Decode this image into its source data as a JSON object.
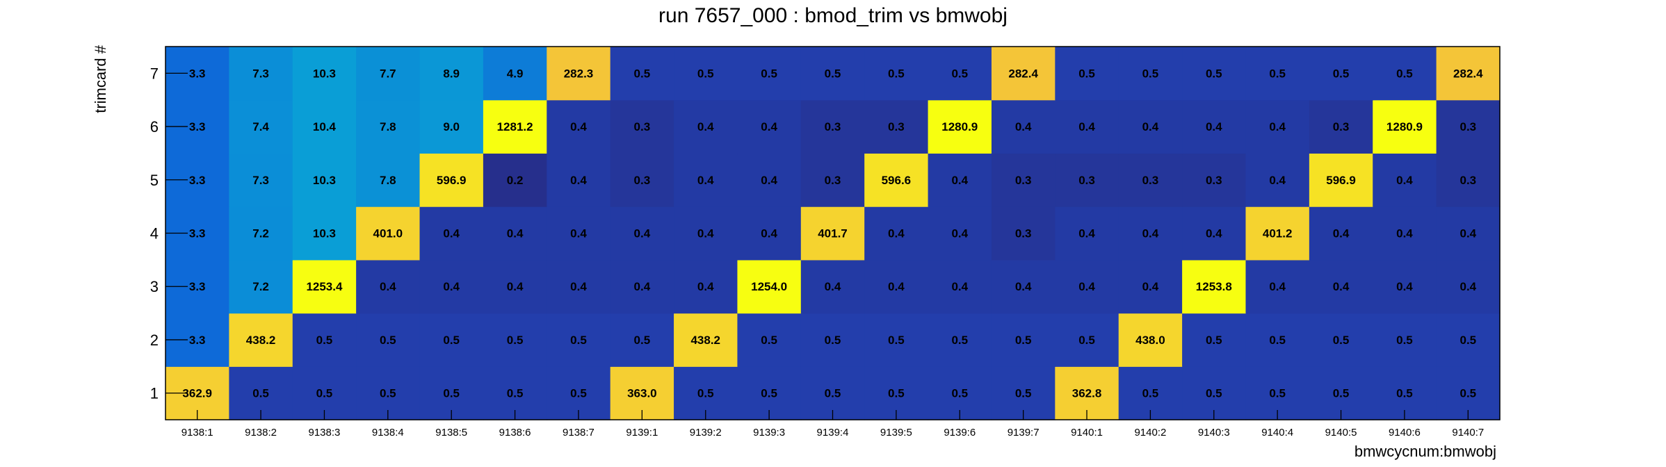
{
  "chart_data": {
    "type": "heatmap",
    "title": "run 7657_000 : bmod_trim vs bmwobj",
    "xlabel": "bmwcycnum:bmwobj",
    "ylabel": "trimcard #",
    "categories": [
      "9138:1",
      "9138:2",
      "9138:3",
      "9138:4",
      "9138:5",
      "9138:6",
      "9138:7",
      "9139:1",
      "9139:2",
      "9139:3",
      "9139:4",
      "9139:5",
      "9139:6",
      "9139:7",
      "9140:1",
      "9140:2",
      "9140:3",
      "9140:4",
      "9140:5",
      "9140:6",
      "9140:7"
    ],
    "y": [
      1,
      2,
      3,
      4,
      5,
      6,
      7
    ],
    "values": [
      [
        362.9,
        0.5,
        0.5,
        0.5,
        0.5,
        0.5,
        0.5,
        363.0,
        0.5,
        0.5,
        0.5,
        0.5,
        0.5,
        0.5,
        362.8,
        0.5,
        0.5,
        0.5,
        0.5,
        0.5,
        0.5
      ],
      [
        3.3,
        438.2,
        0.5,
        0.5,
        0.5,
        0.5,
        0.5,
        0.5,
        438.2,
        0.5,
        0.5,
        0.5,
        0.5,
        0.5,
        0.5,
        438.0,
        0.5,
        0.5,
        0.5,
        0.5,
        0.5
      ],
      [
        3.3,
        7.2,
        1253.4,
        0.4,
        0.4,
        0.4,
        0.4,
        0.4,
        0.4,
        1254.0,
        0.4,
        0.4,
        0.4,
        0.4,
        0.4,
        0.4,
        1253.8,
        0.4,
        0.4,
        0.4,
        0.4
      ],
      [
        3.3,
        7.2,
        10.3,
        401.0,
        0.4,
        0.4,
        0.4,
        0.4,
        0.4,
        0.4,
        401.7,
        0.4,
        0.4,
        0.3,
        0.4,
        0.4,
        0.4,
        401.2,
        0.4,
        0.4,
        0.4
      ],
      [
        3.3,
        7.3,
        10.3,
        7.8,
        596.9,
        0.2,
        0.4,
        0.3,
        0.4,
        0.4,
        0.3,
        596.6,
        0.4,
        0.3,
        0.3,
        0.3,
        0.3,
        0.4,
        596.9,
        0.4,
        0.3
      ],
      [
        3.3,
        7.4,
        10.4,
        7.8,
        9.0,
        1281.2,
        0.4,
        0.3,
        0.4,
        0.4,
        0.3,
        0.3,
        1280.9,
        0.4,
        0.4,
        0.4,
        0.4,
        0.4,
        0.3,
        1280.9,
        0.3
      ],
      [
        3.3,
        7.3,
        10.3,
        7.7,
        8.9,
        4.9,
        282.3,
        0.5,
        0.5,
        0.5,
        0.5,
        0.5,
        0.5,
        282.4,
        0.5,
        0.5,
        0.5,
        0.5,
        0.5,
        0.5,
        282.4
      ]
    ],
    "value_format": "one decimal",
    "colormap": [
      "#262f8c",
      "#1f4fd0",
      "#0f62d8",
      "#0a9ed6",
      "#1ab3b8",
      "#2fb59a",
      "#f4c33a",
      "#f7ff10"
    ],
    "legend": "none",
    "grid": false
  }
}
